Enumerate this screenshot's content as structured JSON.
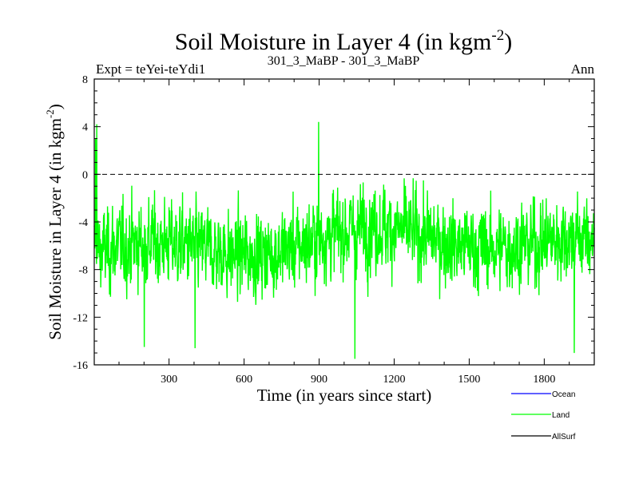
{
  "colors": {
    "ocean": "#0000ff",
    "land": "#00ff00",
    "allsurf": "#000000",
    "axis": "#000000"
  },
  "chart_data": {
    "type": "line",
    "title": "Soil Moisture in Layer 4 (in kgm",
    "title_sup": "-2",
    "title_close": ")",
    "subtitle_left": "Expt = teYei-teYdi1",
    "subtitle_center": "301_3_MaBP - 301_3_MaBP",
    "subtitle_right": "Ann",
    "xlabel": "Time (in years since start)",
    "ylabel": "Soil Moisture in Layer 4 (in kgm",
    "ylabel_sup": "-2",
    "ylabel_close": ")",
    "xlim": [
      1,
      2000
    ],
    "ylim": [
      -16,
      8
    ],
    "x_ticks": [
      "300",
      "600",
      "900",
      "1200",
      "1500",
      "1800"
    ],
    "y_ticks": [
      "8",
      "4",
      "0",
      "-4",
      "-8",
      "-12",
      "-16"
    ],
    "reference_line": 0,
    "series_summary": {
      "Land": {
        "n_points": 2000,
        "mean": -5.9,
        "approx_min": -15.5,
        "approx_max": 4.4,
        "note": "noisy annual series fluctuating around about -6 with extremes reaching -15.5 and +4.4"
      }
    },
    "series": [
      {
        "name": "Ocean",
        "values": []
      },
      {
        "name": "Land",
        "values": "see series_summary (2000 annual values)"
      },
      {
        "name": "AllSurf",
        "values": []
      }
    ],
    "legend": [
      {
        "name": "Ocean",
        "color": "#0000ff"
      },
      {
        "name": "Land",
        "color": "#00ff00"
      },
      {
        "name": "AllSurf",
        "color": "#000000"
      }
    ],
    "legend_position": "bottom-right"
  }
}
